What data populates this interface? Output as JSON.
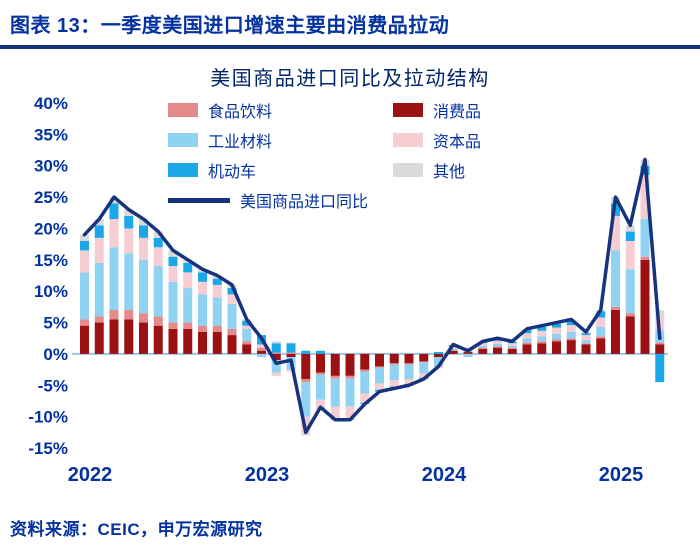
{
  "header": {
    "title": "图表 13：一季度美国进口增速主要由消费品拉动"
  },
  "footer": {
    "source": "资料来源：CEIC，申万宏源研究"
  },
  "chart": {
    "title": "美国商品进口同比及拉动结构",
    "legend": [
      {
        "label": "食品饮料",
        "color": "#E58A8A",
        "type": "box"
      },
      {
        "label": "消费品",
        "color": "#9C1212",
        "type": "box"
      },
      {
        "label": "工业材料",
        "color": "#8FD2F2",
        "type": "box"
      },
      {
        "label": "资本品",
        "color": "#F6CDD3",
        "type": "box"
      },
      {
        "label": "机动车",
        "color": "#1BA7E8",
        "type": "box"
      },
      {
        "label": "其他",
        "color": "#D9D9D9",
        "type": "box"
      },
      {
        "label": "美国商品进口同比",
        "color": "#16337E",
        "type": "line"
      }
    ]
  },
  "chart_data": {
    "type": "bar",
    "subtype": "stacked-bar-with-line-overlay",
    "title": "美国商品进口同比及拉动结构",
    "xlabel": "",
    "ylabel": "",
    "unit": "%",
    "ylim": [
      -15,
      40
    ],
    "yticks": [
      "40%",
      "35%",
      "30%",
      "25%",
      "20%",
      "15%",
      "10%",
      "5%",
      "0%",
      "-5%",
      "-10%",
      "-15%"
    ],
    "xticks": [
      {
        "label": "2022",
        "month_index": 0
      },
      {
        "label": "2023",
        "month_index": 12
      },
      {
        "label": "2024",
        "month_index": 24
      },
      {
        "label": "2025",
        "month_index": 36
      }
    ],
    "grid": false,
    "legend_position": "upper-center-inside",
    "categories": [
      "2022-01",
      "2022-02",
      "2022-03",
      "2022-04",
      "2022-05",
      "2022-06",
      "2022-07",
      "2022-08",
      "2022-09",
      "2022-10",
      "2022-11",
      "2022-12",
      "2023-01",
      "2023-02",
      "2023-03",
      "2023-04",
      "2023-05",
      "2023-06",
      "2023-07",
      "2023-08",
      "2023-09",
      "2023-10",
      "2023-11",
      "2023-12",
      "2024-01",
      "2024-02",
      "2024-03",
      "2024-04",
      "2024-05",
      "2024-06",
      "2024-07",
      "2024-08",
      "2024-09",
      "2024-10",
      "2024-11",
      "2024-12",
      "2025-01",
      "2025-02",
      "2025-03",
      "2025-04"
    ],
    "series": [
      {
        "name": "消费品",
        "values": [
          4.5,
          5.0,
          5.5,
          5.5,
          5.0,
          4.5,
          4.0,
          4.0,
          3.5,
          3.5,
          3.0,
          1.5,
          0.5,
          -1.0,
          -0.5,
          -4.0,
          -3.0,
          -3.5,
          -3.5,
          -2.5,
          -2.0,
          -1.5,
          -1.5,
          -1.2,
          -0.5,
          0.5,
          0.3,
          0.8,
          1.0,
          0.8,
          1.5,
          1.7,
          2.0,
          2.2,
          1.5,
          2.5,
          7.0,
          6.0,
          15.0,
          1.5
        ]
      },
      {
        "name": "食品饮料",
        "values": [
          1.0,
          1.0,
          1.5,
          1.5,
          1.5,
          1.5,
          1.0,
          1.0,
          1.0,
          1.0,
          1.0,
          0.5,
          0.5,
          0.2,
          0.2,
          -0.5,
          -0.3,
          -0.4,
          -0.4,
          -0.3,
          -0.2,
          -0.2,
          -0.2,
          -0.1,
          0.0,
          0.1,
          0.1,
          0.2,
          0.2,
          0.2,
          0.3,
          0.3,
          0.3,
          0.3,
          0.2,
          0.3,
          0.5,
          0.5,
          0.5,
          0.3
        ]
      },
      {
        "name": "工业材料",
        "values": [
          7.5,
          8.5,
          10.0,
          9.0,
          8.5,
          8.0,
          6.5,
          5.5,
          5.0,
          4.5,
          4.0,
          2.0,
          -0.5,
          -2.0,
          -2.0,
          -5.5,
          -4.0,
          -4.5,
          -4.5,
          -3.5,
          -2.5,
          -2.5,
          -2.3,
          -1.8,
          -1.5,
          0.2,
          -0.5,
          0.3,
          0.4,
          0.3,
          0.7,
          0.8,
          0.9,
          1.0,
          0.5,
          1.5,
          9.0,
          7.0,
          6.0,
          2.0
        ]
      },
      {
        "name": "资本品",
        "values": [
          3.5,
          4.0,
          4.5,
          4.0,
          3.5,
          3.0,
          2.5,
          2.5,
          2.0,
          2.0,
          1.5,
          0.5,
          0.5,
          -0.5,
          -0.3,
          -2.5,
          -1.5,
          -2.0,
          -2.0,
          -1.5,
          -1.0,
          -1.0,
          -0.8,
          -0.7,
          -0.3,
          0.3,
          0.3,
          0.4,
          0.5,
          0.4,
          0.8,
          0.9,
          1.0,
          1.1,
          0.8,
          1.5,
          5.5,
          4.5,
          7.0,
          2.2
        ]
      },
      {
        "name": "机动车",
        "values": [
          1.5,
          2.0,
          2.5,
          2.0,
          2.0,
          1.5,
          1.5,
          1.5,
          1.5,
          1.0,
          1.0,
          0.8,
          1.5,
          1.5,
          1.5,
          0.5,
          0.5,
          -0.1,
          -0.1,
          -0.2,
          -0.3,
          -0.3,
          -0.2,
          -0.2,
          0.3,
          0.3,
          0.2,
          0.2,
          0.3,
          0.2,
          0.5,
          0.6,
          0.6,
          0.7,
          0.3,
          1.0,
          2.0,
          1.5,
          1.5,
          -4.5
        ]
      },
      {
        "name": "其他",
        "values": [
          1.0,
          1.0,
          1.0,
          1.0,
          1.0,
          1.0,
          1.0,
          0.5,
          0.5,
          0.5,
          0.5,
          0.2,
          0.0,
          0.3,
          0.1,
          -0.5,
          -0.2,
          0.0,
          0.0,
          0.0,
          0.0,
          0.0,
          0.0,
          0.0,
          0.0,
          0.1,
          0.1,
          0.1,
          0.1,
          0.1,
          0.2,
          0.2,
          0.2,
          0.2,
          0.2,
          0.2,
          1.0,
          1.0,
          1.0,
          1.0
        ]
      }
    ],
    "line": {
      "name": "美国商品进口同比",
      "values": [
        19,
        21.5,
        25,
        23,
        21.5,
        19.5,
        16.5,
        15,
        13.5,
        12.5,
        11,
        5.5,
        2.5,
        -1.5,
        -1,
        -12.5,
        -8.5,
        -10.5,
        -10.5,
        -8,
        -6,
        -5.5,
        -5,
        -4,
        -2,
        1.5,
        0.5,
        2,
        2.5,
        2,
        4,
        4.5,
        5,
        5.5,
        3.5,
        7,
        25,
        20.5,
        31,
        2.5
      ]
    },
    "colors": {
      "食品饮料": "#E58A8A",
      "消费品": "#9C1212",
      "工业材料": "#8FD2F2",
      "资本品": "#F6CDD3",
      "机动车": "#1BA7E8",
      "其他": "#D9D9D9",
      "line": "#16337E",
      "zero_axis": "#9CC3E8"
    }
  }
}
